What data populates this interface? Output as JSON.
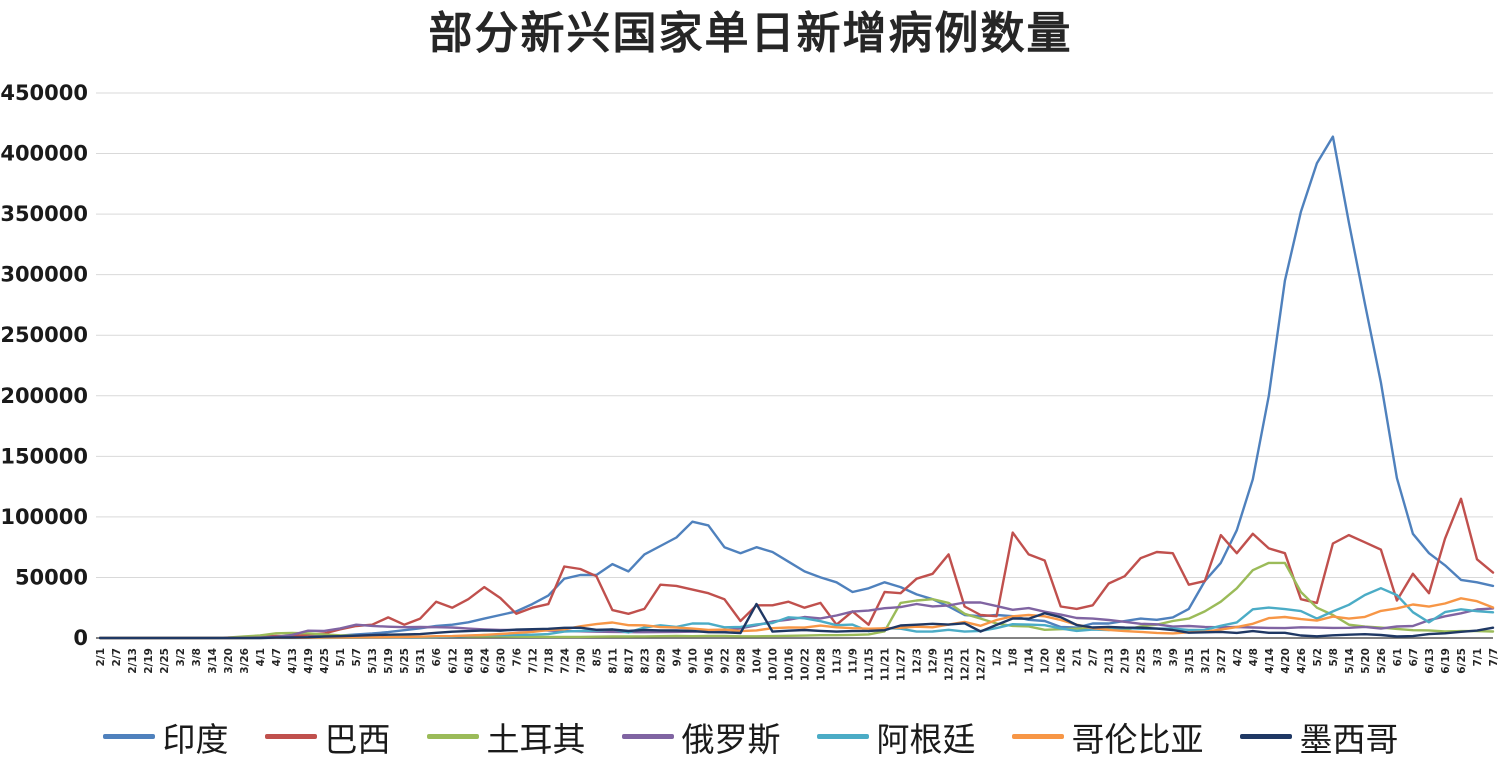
{
  "title": "部分新兴国家单日新增病例数量",
  "axis": {
    "y_max_label": "450000",
    "y_min_label": "0"
  },
  "chart_data": {
    "type": "line",
    "title": "部分新兴国家单日新增病例数量",
    "xlabel": "",
    "ylabel": "",
    "ylim": [
      0,
      450000
    ],
    "ytick_step": 50000,
    "grid": true,
    "legend_position": "bottom",
    "x": [
      "2/1",
      "2/7",
      "2/13",
      "2/19",
      "2/25",
      "3/2",
      "3/8",
      "3/14",
      "3/20",
      "3/26",
      "4/1",
      "4/7",
      "4/13",
      "4/19",
      "4/25",
      "5/1",
      "5/7",
      "5/13",
      "5/19",
      "5/25",
      "5/31",
      "6/6",
      "6/12",
      "6/18",
      "6/24",
      "6/30",
      "7/6",
      "7/12",
      "7/18",
      "7/24",
      "7/30",
      "8/5",
      "8/11",
      "8/17",
      "8/23",
      "8/29",
      "9/4",
      "9/10",
      "9/16",
      "9/22",
      "9/28",
      "10/4",
      "10/10",
      "10/16",
      "10/22",
      "10/28",
      "11/3",
      "11/9",
      "11/15",
      "11/21",
      "11/27",
      "12/3",
      "12/9",
      "12/15",
      "12/21",
      "12/27",
      "1/2",
      "1/8",
      "1/14",
      "1/20",
      "1/26",
      "2/1",
      "2/7",
      "2/13",
      "2/19",
      "2/25",
      "3/3",
      "3/9",
      "3/15",
      "3/21",
      "3/27",
      "4/2",
      "4/8",
      "4/14",
      "4/20",
      "4/26",
      "5/2",
      "5/8",
      "5/14",
      "5/20",
      "5/26",
      "6/1",
      "6/7",
      "6/13",
      "6/19",
      "6/25",
      "7/1",
      "7/7"
    ],
    "series": [
      {
        "name": "印度",
        "color": "#4F81BD",
        "values": [
          0,
          0,
          0,
          0,
          0,
          0,
          0,
          0,
          100,
          200,
          400,
          700,
          1000,
          1300,
          1600,
          2000,
          2900,
          3700,
          4900,
          6400,
          8000,
          9900,
          11000,
          13000,
          16000,
          19000,
          22000,
          28000,
          35000,
          49000,
          52000,
          52000,
          61000,
          55000,
          69000,
          76000,
          83000,
          96000,
          93000,
          75000,
          70000,
          75000,
          71000,
          63000,
          55000,
          50000,
          46000,
          38000,
          41000,
          46000,
          42000,
          36000,
          32000,
          26000,
          19000,
          18000,
          19000,
          18000,
          15000,
          14000,
          9100,
          8600,
          12000,
          12000,
          14000,
          16000,
          15000,
          17000,
          24000,
          47000,
          62000,
          89000,
          131000,
          200000,
          295000,
          352000,
          392000,
          414000,
          343000,
          276000,
          211000,
          132000,
          86000,
          70000,
          60000,
          48000,
          46000,
          43000
        ]
      },
      {
        "name": "巴西",
        "color": "#C0504D",
        "values": [
          0,
          0,
          0,
          0,
          0,
          0,
          0,
          0,
          300,
          500,
          1100,
          1700,
          1300,
          2900,
          3700,
          7200,
          9900,
          11000,
          17000,
          11000,
          16000,
          30000,
          25000,
          32000,
          42000,
          33000,
          20000,
          25000,
          28000,
          59000,
          57000,
          51000,
          23000,
          20000,
          24000,
          44000,
          43000,
          40000,
          37000,
          32000,
          14000,
          27000,
          27000,
          30000,
          25000,
          29000,
          11000,
          22000,
          11000,
          38000,
          37000,
          49000,
          53000,
          69000,
          26000,
          19000,
          18000,
          87000,
          69000,
          64000,
          26000,
          24000,
          27000,
          45000,
          51000,
          66000,
          71000,
          70000,
          44000,
          47000,
          85000,
          70000,
          86000,
          74000,
          70000,
          32000,
          29000,
          78000,
          85000,
          79000,
          73000,
          31000,
          53000,
          37000,
          82000,
          115000,
          65000,
          54000
        ]
      },
      {
        "name": "土耳其",
        "color": "#9BBB59",
        "values": [
          0,
          0,
          0,
          0,
          0,
          0,
          0,
          0,
          300,
          1200,
          2100,
          3900,
          4100,
          3900,
          3000,
          2200,
          1900,
          1600,
          1000,
          1000,
          800,
          900,
          1500,
          1300,
          1300,
          1300,
          1100,
          1000,
          900,
          900,
          900,
          1100,
          1200,
          1200,
          1300,
          1500,
          1700,
          1500,
          1700,
          1700,
          1400,
          1400,
          1600,
          1800,
          2000,
          2300,
          2300,
          2600,
          3000,
          5500,
          29000,
          31000,
          32000,
          29000,
          20000,
          16000,
          12000,
          10000,
          9600,
          6800,
          7300,
          7700,
          7900,
          7300,
          6500,
          9600,
          11000,
          14000,
          16000,
          22000,
          30000,
          41000,
          56000,
          62000,
          62000,
          38000,
          25000,
          19000,
          11000,
          9400,
          8600,
          7500,
          6400,
          6300,
          5400,
          5700,
          5700,
          5400
        ]
      },
      {
        "name": "俄罗斯",
        "color": "#8064A2",
        "values": [
          0,
          0,
          0,
          0,
          0,
          0,
          0,
          0,
          100,
          200,
          500,
          1000,
          2600,
          6000,
          5900,
          7900,
          11000,
          10000,
          9300,
          8900,
          9100,
          8900,
          8700,
          7800,
          7100,
          6700,
          6600,
          6600,
          6100,
          5800,
          5500,
          5200,
          5000,
          4900,
          4800,
          4900,
          5000,
          5200,
          5500,
          6200,
          8000,
          10500,
          13600,
          15100,
          17300,
          16200,
          18600,
          21800,
          22600,
          24600,
          25500,
          28100,
          26100,
          26900,
          29300,
          29300,
          26300,
          23300,
          24700,
          21700,
          19300,
          16500,
          16000,
          14900,
          13400,
          11700,
          11300,
          9400,
          9900,
          9200,
          8800,
          9100,
          8700,
          8300,
          8200,
          8800,
          8600,
          8300,
          8400,
          9200,
          7800,
          9500,
          9900,
          14700,
          17900,
          20400,
          23500,
          24400
        ]
      },
      {
        "name": "阿根廷",
        "color": "#4BACC6",
        "values": [
          0,
          0,
          0,
          0,
          0,
          0,
          0,
          0,
          0,
          0,
          100,
          100,
          100,
          100,
          100,
          200,
          200,
          300,
          400,
          700,
          800,
          900,
          1200,
          1700,
          2600,
          2300,
          2600,
          2700,
          3200,
          5300,
          5900,
          6100,
          7000,
          4500,
          8700,
          10500,
          9200,
          12000,
          11900,
          8800,
          9200,
          11200,
          12400,
          17100,
          16300,
          13900,
          10600,
          11100,
          5600,
          8200,
          7700,
          5300,
          5400,
          6800,
          5300,
          5900,
          8200,
          11400,
          11100,
          10600,
          7900,
          5900,
          7000,
          6600,
          8200,
          7600,
          7800,
          7800,
          6700,
          6800,
          10100,
          12900,
          23700,
          25100,
          23900,
          22200,
          16000,
          22000,
          27400,
          35500,
          41100,
          35400,
          21300,
          13000,
          21400,
          23700,
          22100,
          21200
        ]
      },
      {
        "name": "哥伦比亚",
        "color": "#F79646",
        "values": [
          0,
          0,
          0,
          0,
          0,
          0,
          0,
          0,
          0,
          0,
          100,
          200,
          200,
          200,
          300,
          400,
          500,
          600,
          700,
          900,
          1100,
          1500,
          1600,
          2100,
          2600,
          3300,
          4200,
          5000,
          6600,
          7200,
          9700,
          11500,
          12800,
          10600,
          10500,
          9000,
          8600,
          7800,
          6700,
          6900,
          5700,
          6300,
          8100,
          8700,
          8600,
          10200,
          8800,
          8100,
          7700,
          8000,
          8400,
          9300,
          8800,
          11100,
          13300,
          10100,
          14900,
          17900,
          19000,
          17900,
          14900,
          11000,
          8100,
          6700,
          5700,
          5000,
          4200,
          3800,
          4700,
          5200,
          6900,
          9000,
          11700,
          16400,
          17300,
          15600,
          14400,
          17700,
          16000,
          17400,
          22400,
          24400,
          27700,
          25900,
          28500,
          32800,
          30400,
          25200
        ]
      },
      {
        "name": "墨西哥",
        "color": "#1F3864",
        "values": [
          0,
          0,
          0,
          0,
          0,
          0,
          0,
          0,
          0,
          0,
          0,
          300,
          400,
          600,
          1200,
          1500,
          1900,
          2400,
          2700,
          3000,
          3200,
          4300,
          5200,
          5700,
          6300,
          6000,
          6900,
          7300,
          7600,
          8400,
          8500,
          6800,
          7000,
          5800,
          6700,
          6300,
          6200,
          5900,
          4800,
          4700,
          4100,
          28100,
          5300,
          6000,
          6600,
          5900,
          5300,
          5700,
          5900,
          6400,
          10300,
          11000,
          11700,
          11100,
          12100,
          5400,
          10800,
          16100,
          15900,
          20500,
          17200,
          10700,
          8700,
          9200,
          8600,
          8500,
          7800,
          6600,
          4400,
          4700,
          5000,
          4200,
          5700,
          4300,
          4300,
          2100,
          1400,
          2200,
          2700,
          3100,
          2500,
          1200,
          1600,
          3200,
          3900,
          5100,
          6100,
          8500
        ]
      }
    ]
  }
}
